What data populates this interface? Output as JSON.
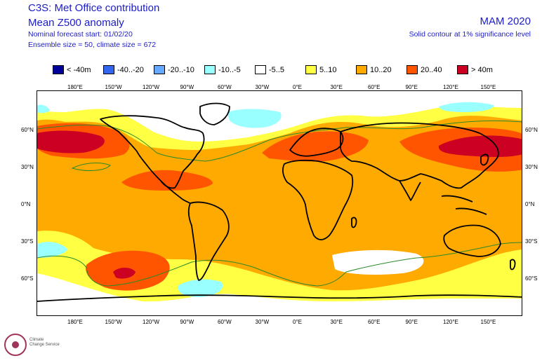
{
  "header": {
    "title": "C3S: Met Office contribution",
    "subtitle": "Mean Z500 anomaly",
    "forecast_start": "Nominal forecast start: 01/02/20",
    "ensemble": "Ensemble size = 50, climate size = 672",
    "season": "MAM 2020",
    "contour_note": "Solid contour at 1% significance level"
  },
  "legend": [
    {
      "label": "< -40m",
      "color": "#000099"
    },
    {
      "label": "-40..-20",
      "color": "#3366ee"
    },
    {
      "label": "-20..-10",
      "color": "#66aaff"
    },
    {
      "label": "-10..-5",
      "color": "#99ffff"
    },
    {
      "label": "-5..5",
      "color": "#ffffff"
    },
    {
      "label": "5..10",
      "color": "#ffff44"
    },
    {
      "label": "10..20",
      "color": "#ffaa00"
    },
    {
      "label": "20..40",
      "color": "#ff5500"
    },
    {
      "label": "> 40m",
      "color": "#cc0022"
    }
  ],
  "lon_ticks": [
    "180°E",
    "150°W",
    "120°W",
    "90°W",
    "60°W",
    "30°W",
    "0°E",
    "30°E",
    "60°E",
    "90°E",
    "120°E",
    "150°E"
  ],
  "lat_ticks": [
    "60°N",
    "30°N",
    "0°N",
    "30°S",
    "60°S"
  ],
  "logo": {
    "line1": "Climate",
    "line2": "Change Service"
  },
  "colors": {
    "title": "#1c1cc8",
    "significance_contour": "#2a8a2a"
  }
}
